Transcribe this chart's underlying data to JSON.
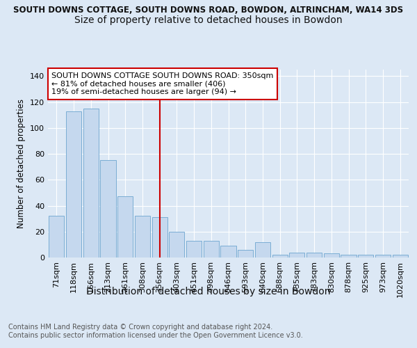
{
  "title": "SOUTH DOWNS COTTAGE, SOUTH DOWNS ROAD, BOWDON, ALTRINCHAM, WA14 3DS",
  "subtitle": "Size of property relative to detached houses in Bowdon",
  "xlabel": "Distribution of detached houses by size in Bowdon",
  "ylabel": "Number of detached properties",
  "categories": [
    "71sqm",
    "118sqm",
    "166sqm",
    "213sqm",
    "261sqm",
    "308sqm",
    "356sqm",
    "403sqm",
    "451sqm",
    "498sqm",
    "546sqm",
    "593sqm",
    "640sqm",
    "688sqm",
    "735sqm",
    "783sqm",
    "830sqm",
    "878sqm",
    "925sqm",
    "973sqm",
    "1020sqm"
  ],
  "values": [
    32,
    113,
    115,
    75,
    47,
    32,
    31,
    20,
    13,
    13,
    9,
    6,
    12,
    2,
    4,
    4,
    3,
    2,
    2,
    2,
    2
  ],
  "bar_color": "#c5d8ee",
  "bar_edge_color": "#7aadd4",
  "highlight_x": "356sqm",
  "highlight_line_color": "#cc0000",
  "annotation_text": "SOUTH DOWNS COTTAGE SOUTH DOWNS ROAD: 350sqm\n← 81% of detached houses are smaller (406)\n19% of semi-detached houses are larger (94) →",
  "annotation_box_color": "#ffffff",
  "annotation_box_edge": "#cc0000",
  "ylim": [
    0,
    145
  ],
  "yticks": [
    0,
    20,
    40,
    60,
    80,
    100,
    120,
    140
  ],
  "footer_text": "Contains HM Land Registry data © Crown copyright and database right 2024.\nContains public sector information licensed under the Open Government Licence v3.0.",
  "background_color": "#dce8f5",
  "plot_bg_color": "#dce8f5",
  "title_fontsize": 8.5,
  "subtitle_fontsize": 10,
  "xlabel_fontsize": 10,
  "ylabel_fontsize": 8.5,
  "tick_fontsize": 8,
  "annotation_fontsize": 8,
  "footer_fontsize": 7
}
